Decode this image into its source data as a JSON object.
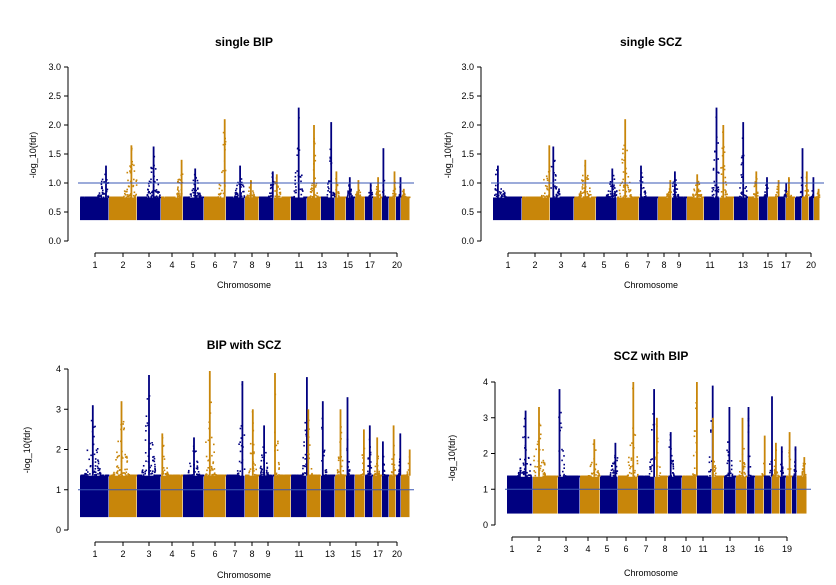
{
  "colors": {
    "odd": "#000080",
    "even": "#c8860a",
    "threshold": "#3a57b5",
    "axis": "#000000"
  },
  "chart_data": [
    {
      "type": "scatter",
      "title": "single BIP",
      "xlabel": "Chromosome",
      "ylabel": "-log_10(fdr)",
      "ylim": [
        0.0,
        3.0
      ],
      "yticks": [
        "0.0",
        "0.5",
        "1.0",
        "1.5",
        "2.0",
        "2.5",
        "3.0"
      ],
      "xtick_labels": [
        "1",
        "2",
        "3",
        "4",
        "5",
        "6",
        "7",
        "8",
        "9",
        "11",
        "13",
        "15",
        "17",
        "20"
      ],
      "threshold": 1.0,
      "series_peaks": [
        1.3,
        1.65,
        1.63,
        1.4,
        1.25,
        2.1,
        1.3,
        1.05,
        1.2,
        1.15,
        2.3,
        2.0,
        2.05,
        1.2,
        1.1,
        1.05,
        1.0,
        1.1,
        1.6,
        1.2,
        1.1,
        0.9
      ],
      "grid": false
    },
    {
      "type": "scatter",
      "title": "single SCZ",
      "xlabel": "Chromosome",
      "ylabel": "-log_10(fdr)",
      "ylim": [
        0.0,
        3.0
      ],
      "yticks": [
        "0.0",
        "0.5",
        "1.0",
        "1.5",
        "2.0",
        "2.5",
        "3.0"
      ],
      "xtick_labels": [
        "1",
        "2",
        "3",
        "4",
        "5",
        "6",
        "7",
        "8",
        "9",
        "11",
        "13",
        "15",
        "17",
        "20"
      ],
      "threshold": 1.0,
      "series_peaks": [
        1.3,
        1.65,
        1.63,
        1.4,
        1.25,
        2.1,
        1.3,
        1.05,
        1.2,
        1.15,
        2.3,
        2.0,
        2.05,
        1.2,
        1.1,
        1.05,
        1.0,
        1.1,
        1.6,
        1.2,
        1.1,
        0.9
      ],
      "grid": false
    },
    {
      "type": "scatter",
      "title": "BIP with SCZ",
      "xlabel": "Chromosome",
      "ylabel": "-log_10(fdr)",
      "ylim": [
        0,
        4
      ],
      "yticks": [
        "0",
        "1",
        "2",
        "3",
        "4"
      ],
      "xtick_labels": [
        "1",
        "2",
        "3",
        "4",
        "5",
        "6",
        "7",
        "8",
        "9",
        "11",
        "13",
        "15",
        "17",
        "20"
      ],
      "threshold": 1.0,
      "series_peaks": [
        3.1,
        3.2,
        3.85,
        2.4,
        2.3,
        3.95,
        3.7,
        3.0,
        2.6,
        3.9,
        3.8,
        3.0,
        3.2,
        3.0,
        3.3,
        2.5,
        2.6,
        2.3,
        2.2,
        2.6,
        2.4,
        2.0
      ],
      "grid": false
    },
    {
      "type": "scatter",
      "title": "SCZ with BIP",
      "xlabel": "Chromosome",
      "ylabel": "-log_10(fdr)",
      "ylim": [
        0,
        4
      ],
      "yticks": [
        "0",
        "1",
        "2",
        "3",
        "4"
      ],
      "xtick_labels": [
        "1",
        "2",
        "3",
        "4",
        "5",
        "6",
        "7",
        "8",
        "10",
        "11",
        "13",
        "16",
        "19"
      ],
      "threshold": 1.0,
      "series_peaks": [
        3.2,
        3.3,
        3.8,
        2.4,
        2.3,
        4.0,
        3.8,
        3.0,
        2.6,
        4.0,
        3.9,
        3.0,
        3.3,
        3.0,
        3.3,
        2.5,
        3.6,
        2.3,
        2.2,
        2.6,
        2.2,
        1.9
      ],
      "grid": false
    }
  ]
}
